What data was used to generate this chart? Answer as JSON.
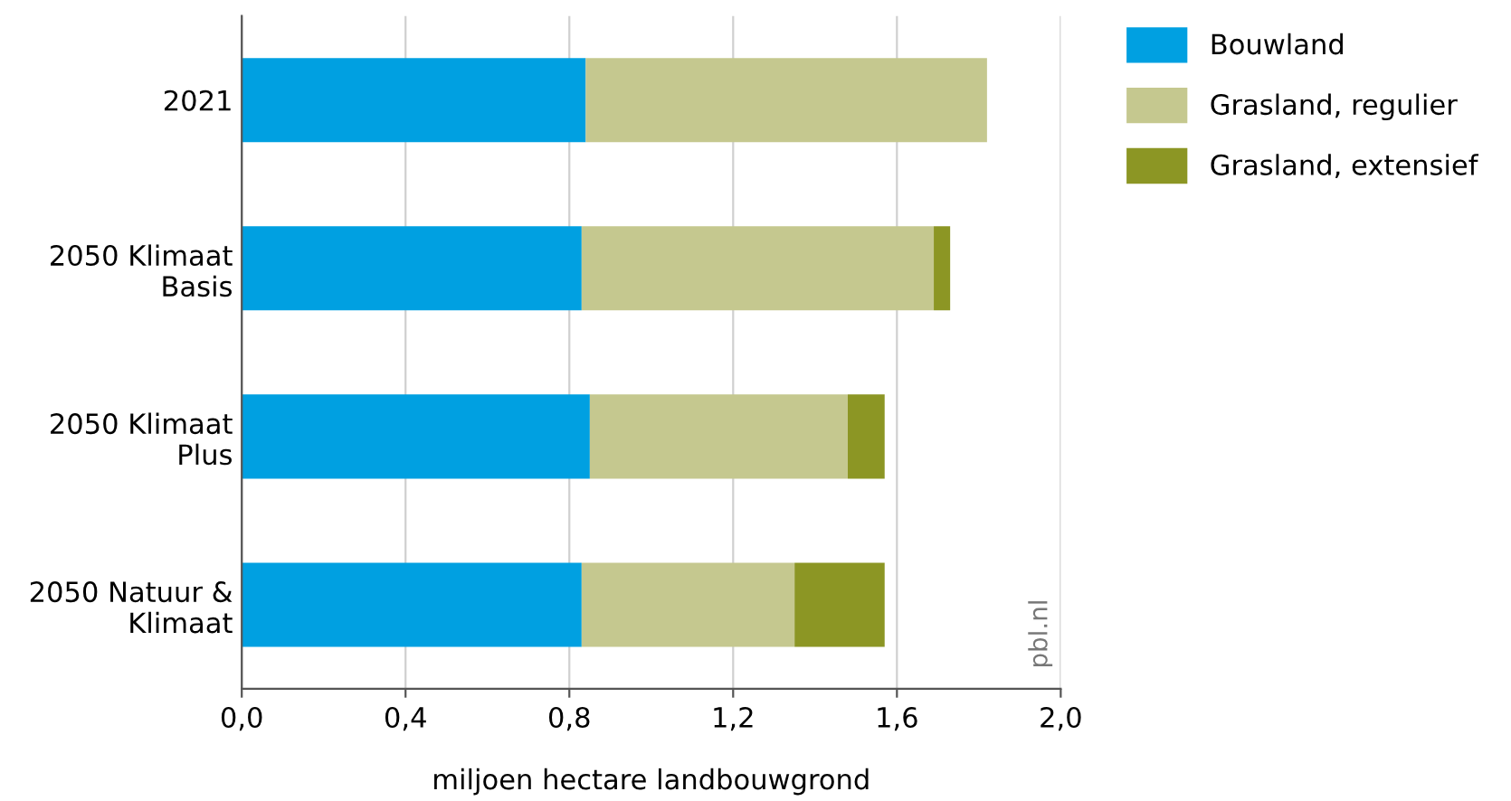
{
  "chart_data": {
    "type": "bar",
    "orientation": "horizontal",
    "stacked": true,
    "categories": [
      "2021",
      "2050 Klimaat\nBasis",
      "2050 Klimaat\nPlus",
      "2050 Natuur &\nKlimaat"
    ],
    "series": [
      {
        "name": "Bouwland",
        "color": "#00a0e1",
        "values": [
          0.84,
          0.83,
          0.85,
          0.83
        ]
      },
      {
        "name": "Grasland, regulier",
        "color": "#c5c88f",
        "values": [
          0.98,
          0.86,
          0.63,
          0.52
        ]
      },
      {
        "name": "Grasland, extensief",
        "color": "#8c9624",
        "values": [
          null,
          0.04,
          0.09,
          0.22
        ]
      }
    ],
    "xlabel": "miljoen hectare landbouwgrond",
    "xlim": [
      0,
      2.0
    ],
    "xticks": [
      {
        "value": 0,
        "label": "0,0"
      },
      {
        "value": 0.4,
        "label": "0,4"
      },
      {
        "value": 0.8,
        "label": "0,8"
      },
      {
        "value": 1.2,
        "label": "1,2"
      },
      {
        "value": 1.6,
        "label": "1,6"
      },
      {
        "value": 2.0,
        "label": "2,0"
      }
    ],
    "grid": "x",
    "legend": "right",
    "annotations": [
      "pbl.nl"
    ]
  }
}
